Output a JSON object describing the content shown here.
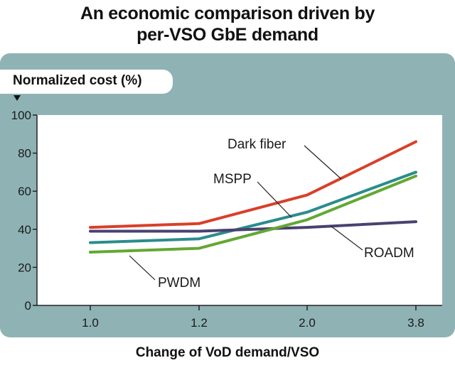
{
  "chart_data": {
    "type": "line",
    "title_line1": "An economic comparison driven by",
    "title_line2": "per-VSO GbE demand",
    "ylabel": "Normalized cost (%)",
    "xlabel": "Change of VoD demand/VSO",
    "categories": [
      "1.0",
      "1.2",
      "2.0",
      "3.8"
    ],
    "yticks": [
      "0",
      "20",
      "40",
      "60",
      "80",
      "100"
    ],
    "ylim": [
      0,
      100
    ],
    "grid": false,
    "series": [
      {
        "name": "Dark fiber",
        "color": "#d8402a",
        "values": [
          41,
          43,
          58,
          86
        ]
      },
      {
        "name": "MSPP",
        "color": "#2b8c8c",
        "values": [
          33,
          35,
          49,
          70
        ]
      },
      {
        "name": "ROADM",
        "color": "#4a4170",
        "values": [
          39,
          39,
          41,
          44
        ]
      },
      {
        "name": "PWDM",
        "color": "#62a833",
        "values": [
          28,
          30,
          45,
          68
        ]
      }
    ]
  }
}
